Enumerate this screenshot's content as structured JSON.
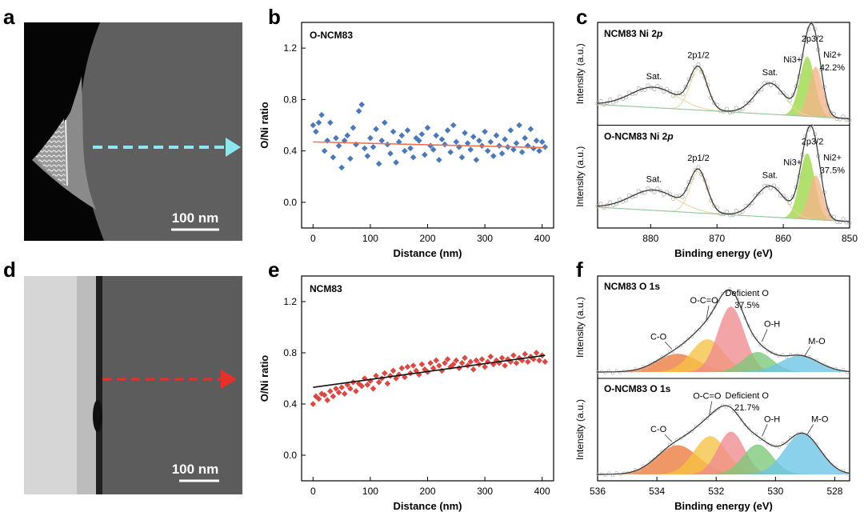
{
  "panels": {
    "a": {
      "label": "a",
      "scalebar_text": "100 nm"
    },
    "b": {
      "label": "b"
    },
    "c": {
      "label": "c"
    },
    "d": {
      "label": "d",
      "scalebar_text": "100 nm"
    },
    "e": {
      "label": "e"
    },
    "f": {
      "label": "f"
    }
  },
  "colors": {
    "arrow_a": "#8fe6f0",
    "arrow_d": "#e8302a",
    "scatter_b": "#4a78b8",
    "fit_b": "#f07050",
    "scatter_e": "#d84a44",
    "fit_e": "#111111",
    "ni3": "#9dd84a",
    "ni2": "#f2b58a",
    "co": "#ec7a3e",
    "oco": "#f5c242",
    "def": "#ee8a8e",
    "oh": "#7cc87a",
    "mo": "#6cc4e6"
  },
  "chart_data": [
    {
      "id": "b",
      "type": "scatter",
      "title": "O-NCM83",
      "xlabel": "Distance (nm)",
      "ylabel": "O/Ni ratio",
      "xlim": [
        -20,
        420
      ],
      "ylim": [
        -0.2,
        1.4
      ],
      "xticks": [
        0,
        100,
        200,
        300,
        400
      ],
      "yticks": [
        0.0,
        0.4,
        0.8,
        1.2
      ],
      "xtick_labels": [
        "0",
        "100",
        "200",
        "300",
        "400"
      ],
      "ytick_labels": [
        "0.0",
        "0.4",
        "0.8",
        "1.2"
      ],
      "fit": {
        "x": [
          0,
          405
        ],
        "y": [
          0.47,
          0.425
        ]
      },
      "x": [
        0,
        5,
        10,
        15,
        20,
        25,
        30,
        35,
        40,
        45,
        50,
        55,
        60,
        65,
        70,
        75,
        80,
        85,
        90,
        95,
        100,
        105,
        110,
        115,
        120,
        125,
        130,
        135,
        140,
        145,
        150,
        155,
        160,
        165,
        170,
        175,
        180,
        185,
        190,
        195,
        200,
        205,
        210,
        215,
        220,
        225,
        230,
        235,
        240,
        245,
        250,
        255,
        260,
        265,
        270,
        275,
        280,
        285,
        290,
        295,
        300,
        305,
        310,
        315,
        320,
        325,
        330,
        335,
        340,
        345,
        350,
        355,
        360,
        365,
        370,
        375,
        380,
        385,
        390,
        395,
        400,
        405
      ],
      "y": [
        0.6,
        0.55,
        0.62,
        0.68,
        0.4,
        0.48,
        0.62,
        0.35,
        0.5,
        0.44,
        0.27,
        0.48,
        0.52,
        0.34,
        0.58,
        0.45,
        0.71,
        0.76,
        0.42,
        0.36,
        0.5,
        0.43,
        0.57,
        0.3,
        0.48,
        0.62,
        0.45,
        0.38,
        0.55,
        0.31,
        0.47,
        0.52,
        0.4,
        0.56,
        0.42,
        0.35,
        0.5,
        0.48,
        0.53,
        0.37,
        0.58,
        0.44,
        0.41,
        0.52,
        0.33,
        0.49,
        0.45,
        0.56,
        0.39,
        0.6,
        0.47,
        0.43,
        0.35,
        0.54,
        0.46,
        0.41,
        0.51,
        0.33,
        0.48,
        0.44,
        0.55,
        0.4,
        0.47,
        0.36,
        0.52,
        0.44,
        0.38,
        0.49,
        0.43,
        0.56,
        0.41,
        0.46,
        0.6,
        0.39,
        0.5,
        0.44,
        0.57,
        0.42,
        0.48,
        0.4,
        0.47,
        0.43
      ]
    },
    {
      "id": "e",
      "type": "scatter",
      "title": "NCM83",
      "xlabel": "Distance (nm)",
      "ylabel": "O/Ni ratio",
      "xlim": [
        -20,
        420
      ],
      "ylim": [
        -0.2,
        1.4
      ],
      "xticks": [
        0,
        100,
        200,
        300,
        400
      ],
      "yticks": [
        0.0,
        0.4,
        0.8,
        1.2
      ],
      "xtick_labels": [
        "0",
        "100",
        "200",
        "300",
        "400"
      ],
      "ytick_labels": [
        "0.0",
        "0.4",
        "0.8",
        "1.2"
      ],
      "fit": {
        "x": [
          0,
          405
        ],
        "y": [
          0.53,
          0.78
        ]
      },
      "x": [
        0,
        5,
        10,
        15,
        20,
        25,
        30,
        35,
        40,
        45,
        50,
        55,
        60,
        65,
        70,
        75,
        80,
        85,
        90,
        95,
        100,
        105,
        110,
        115,
        120,
        125,
        130,
        135,
        140,
        145,
        150,
        155,
        160,
        165,
        170,
        175,
        180,
        185,
        190,
        195,
        200,
        205,
        210,
        215,
        220,
        225,
        230,
        235,
        240,
        245,
        250,
        255,
        260,
        265,
        270,
        275,
        280,
        285,
        290,
        295,
        300,
        305,
        310,
        315,
        320,
        325,
        330,
        335,
        340,
        345,
        350,
        355,
        360,
        365,
        370,
        375,
        380,
        385,
        390,
        395,
        400,
        405
      ],
      "y": [
        0.4,
        0.46,
        0.44,
        0.48,
        0.47,
        0.43,
        0.5,
        0.46,
        0.52,
        0.49,
        0.53,
        0.48,
        0.55,
        0.52,
        0.57,
        0.5,
        0.56,
        0.54,
        0.6,
        0.55,
        0.58,
        0.52,
        0.62,
        0.57,
        0.6,
        0.64,
        0.56,
        0.62,
        0.66,
        0.6,
        0.63,
        0.68,
        0.61,
        0.69,
        0.64,
        0.7,
        0.66,
        0.63,
        0.71,
        0.67,
        0.65,
        0.72,
        0.68,
        0.74,
        0.7,
        0.66,
        0.72,
        0.75,
        0.69,
        0.71,
        0.74,
        0.68,
        0.72,
        0.76,
        0.7,
        0.73,
        0.67,
        0.74,
        0.71,
        0.75,
        0.69,
        0.73,
        0.77,
        0.71,
        0.74,
        0.72,
        0.76,
        0.7,
        0.75,
        0.73,
        0.78,
        0.72,
        0.76,
        0.74,
        0.79,
        0.73,
        0.77,
        0.75,
        0.8,
        0.74,
        0.78,
        0.73
      ]
    },
    {
      "id": "c",
      "type": "line",
      "xlabel": "Binding energy (eV)",
      "ylabel": "Intensity (a.u.)",
      "xlim": [
        888,
        850
      ],
      "xticks": [
        880,
        870,
        860,
        850
      ],
      "xtick_labels": [
        "880",
        "870",
        "860",
        "850"
      ],
      "subplots": [
        {
          "title_prefix": "NCM83 Ni 2",
          "title_italic": "p",
          "baseline": [
            0.12,
            0.0
          ],
          "peaks": [
            {
              "center": 879.5,
              "height": 0.17,
              "width": 3.5,
              "name": "Sat."
            },
            {
              "center": 872.8,
              "height": 0.34,
              "width": 1.3,
              "name": "2p1/2"
            },
            {
              "center": 862.0,
              "height": 0.26,
              "width": 2.2,
              "name": "Sat."
            },
            {
              "center": 856.4,
              "height": 0.5,
              "width": 1.15,
              "fill": "ni3",
              "name": "Ni3+"
            },
            {
              "center": 855.1,
              "height": 0.42,
              "width": 1.05,
              "fill": "ni2",
              "name": "Ni2+"
            }
          ],
          "labels": {
            "sat1": "Sat.",
            "p12": "2p1/2",
            "sat2": "Sat.",
            "ni3": "Ni3+",
            "p32": "2p3/2",
            "ni2": "Ni2+",
            "ni2_pct": "42.2%"
          }
        },
        {
          "title_prefix": "O-NCM83 Ni 2",
          "title_italic": "p",
          "baseline": [
            0.12,
            0.0
          ],
          "peaks": [
            {
              "center": 879.5,
              "height": 0.17,
              "width": 3.5,
              "name": "Sat."
            },
            {
              "center": 872.8,
              "height": 0.34,
              "width": 1.3,
              "name": "2p1/2"
            },
            {
              "center": 862.0,
              "height": 0.26,
              "width": 2.2,
              "name": "Sat."
            },
            {
              "center": 856.4,
              "height": 0.55,
              "width": 1.15,
              "fill": "ni3",
              "name": "Ni3+"
            },
            {
              "center": 855.1,
              "height": 0.37,
              "width": 1.05,
              "fill": "ni2",
              "name": "Ni2+"
            }
          ],
          "labels": {
            "sat1": "Sat.",
            "p12": "2p1/2",
            "sat2": "Sat.",
            "ni3": "Ni3+",
            "p32": "2p3/2",
            "ni2": "Ni2+",
            "ni2_pct": "37.5%"
          }
        }
      ]
    },
    {
      "id": "f",
      "type": "area",
      "xlabel": "Binding energy (eV)",
      "ylabel": "Intensity (a.u.)",
      "xlim": [
        536,
        527.5
      ],
      "xticks": [
        536,
        534,
        532,
        530,
        528
      ],
      "xtick_labels": [
        "536",
        "534",
        "532",
        "530",
        "528"
      ],
      "subplots": [
        {
          "title": "NCM83 O 1s",
          "peaks": [
            {
              "center": 533.3,
              "height": 0.2,
              "width": 0.7,
              "fill": "co",
              "name": "C-O"
            },
            {
              "center": 532.3,
              "height": 0.36,
              "width": 0.55,
              "fill": "oco",
              "name": "O-C=O"
            },
            {
              "center": 531.5,
              "height": 0.72,
              "width": 0.45,
              "fill": "def",
              "name": "Deficient O"
            },
            {
              "center": 530.6,
              "height": 0.22,
              "width": 0.5,
              "fill": "oh",
              "name": "O-H"
            },
            {
              "center": 529.2,
              "height": 0.18,
              "width": 0.65,
              "fill": "mo",
              "name": "M-O"
            }
          ],
          "labels": {
            "co": "C-O",
            "oco": "O-C=O",
            "def": "Deficient O",
            "def_pct": "37.5%",
            "oh": "O-H",
            "mo": "M-O"
          }
        },
        {
          "title": "O-NCM83 O 1s",
          "peaks": [
            {
              "center": 533.3,
              "height": 0.32,
              "width": 0.7,
              "fill": "co",
              "name": "C-O"
            },
            {
              "center": 532.2,
              "height": 0.42,
              "width": 0.55,
              "fill": "oco",
              "name": "O-C=O"
            },
            {
              "center": 531.5,
              "height": 0.47,
              "width": 0.45,
              "fill": "def",
              "name": "Deficient O"
            },
            {
              "center": 530.6,
              "height": 0.33,
              "width": 0.5,
              "fill": "oh",
              "name": "O-H"
            },
            {
              "center": 529.1,
              "height": 0.45,
              "width": 0.6,
              "fill": "mo",
              "name": "M-O"
            }
          ],
          "labels": {
            "co": "C-O",
            "oco": "O-C=O",
            "def": "Deficient O",
            "def_pct": "21.7%",
            "oh": "O-H",
            "mo": "M-O"
          }
        }
      ]
    }
  ]
}
